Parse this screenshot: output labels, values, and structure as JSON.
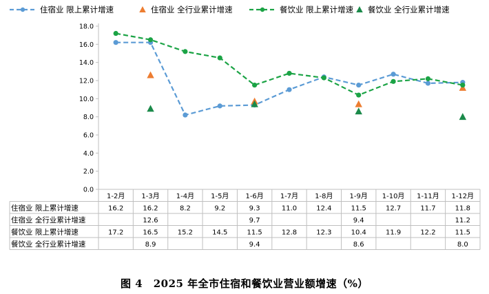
{
  "chart_data": {
    "type": "line",
    "title": "",
    "xlabel": "",
    "ylabel": "",
    "ylim": [
      0,
      18
    ],
    "ytick_step": 2,
    "grid": false,
    "legend_position": "top",
    "categories": [
      "1-2月",
      "1-3月",
      "1-4月",
      "1-5月",
      "1-6月",
      "1-7月",
      "1-8月",
      "1-9月",
      "1-10月",
      "1-11月",
      "1-12月"
    ],
    "series": [
      {
        "name": "住宿业 限上累计增速",
        "kind": "line",
        "color": "#5B9BD5",
        "values": [
          16.2,
          16.2,
          8.2,
          9.2,
          9.3,
          11.0,
          12.4,
          11.5,
          12.7,
          11.7,
          11.8
        ]
      },
      {
        "name": "住宿业 全行业累计增速",
        "kind": "marker",
        "color": "#ED7D31",
        "values": [
          null,
          12.6,
          null,
          null,
          9.7,
          null,
          null,
          9.4,
          null,
          null,
          11.2
        ]
      },
      {
        "name": "餐饮业 限上累计增速",
        "kind": "line",
        "color": "#1BA345",
        "values": [
          17.2,
          16.5,
          15.2,
          14.5,
          11.5,
          12.8,
          12.3,
          10.4,
          11.9,
          12.2,
          11.5
        ]
      },
      {
        "name": "餐饮业 全行业累计增速",
        "kind": "marker",
        "color": "#1B8A4A",
        "values": [
          null,
          8.9,
          null,
          null,
          9.4,
          null,
          null,
          8.6,
          null,
          null,
          8.0
        ]
      }
    ]
  },
  "caption": "图 4　2025 年全市住宿和餐饮业营业额增速（%）"
}
